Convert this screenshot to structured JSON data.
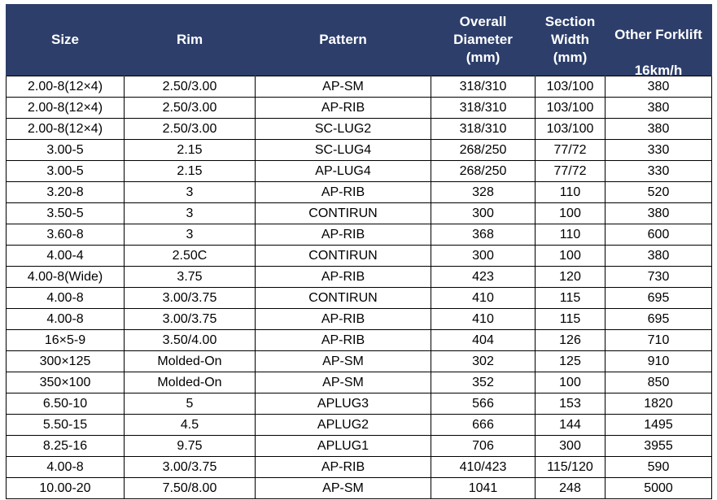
{
  "table": {
    "headers": {
      "size": "Size",
      "rim": "Rim",
      "pattern": "Pattern",
      "diameter": [
        "Overall",
        "Diameter",
        "(mm)"
      ],
      "width": [
        "Section",
        "Width",
        "(mm)"
      ],
      "forklift": [
        "Other Forklift",
        "16km/h"
      ]
    },
    "rows": [
      [
        "2.00-8(12×4)",
        "2.50/3.00",
        "AP-SM",
        "318/310",
        "103/100",
        "380"
      ],
      [
        "2.00-8(12×4)",
        "2.50/3.00",
        "AP-RIB",
        "318/310",
        "103/100",
        "380"
      ],
      [
        "2.00-8(12×4)",
        "2.50/3.00",
        "SC-LUG2",
        "318/310",
        "103/100",
        "380"
      ],
      [
        "3.00-5",
        "2.15",
        "SC-LUG4",
        "268/250",
        "77/72",
        "330"
      ],
      [
        "3.00-5",
        "2.15",
        "AP-LUG4",
        "268/250",
        "77/72",
        "330"
      ],
      [
        "3.20-8",
        "3",
        "AP-RIB",
        "328",
        "110",
        "520"
      ],
      [
        "3.50-5",
        "3",
        "CONTIRUN",
        "300",
        "100",
        "380"
      ],
      [
        "3.60-8",
        "3",
        "AP-RIB",
        "368",
        "110",
        "600"
      ],
      [
        "4.00-4",
        "2.50C",
        "CONTIRUN",
        "300",
        "100",
        "380"
      ],
      [
        "4.00-8(Wide)",
        "3.75",
        "AP-RIB",
        "423",
        "120",
        "730"
      ],
      [
        "4.00-8",
        "3.00/3.75",
        "CONTIRUN",
        "410",
        "115",
        "695"
      ],
      [
        "4.00-8",
        "3.00/3.75",
        "AP-RIB",
        "410",
        "115",
        "695"
      ],
      [
        "16×5-9",
        "3.50/4.00",
        "AP-RIB",
        "404",
        "126",
        "710"
      ],
      [
        "300×125",
        "Molded-On",
        "AP-SM",
        "302",
        "125",
        "910"
      ],
      [
        "350×100",
        "Molded-On",
        "AP-SM",
        "352",
        "100",
        "850"
      ],
      [
        "6.50-10",
        "5",
        "APLUG3",
        "566",
        "153",
        "1820"
      ],
      [
        "5.50-15",
        "4.5",
        "APLUG2",
        "666",
        "144",
        "1495"
      ],
      [
        "8.25-16",
        "9.75",
        "APLUG1",
        "706",
        "300",
        "3955"
      ],
      [
        "4.00-8",
        "3.00/3.75",
        "AP-RIB",
        "410/423",
        "115/120",
        "590"
      ],
      [
        "10.00-20",
        "7.50/8.00",
        "AP-SM",
        "1041",
        "248",
        "5000"
      ]
    ]
  },
  "colors": {
    "header_bg": "#2d3e6a",
    "header_text": "#ffffff",
    "border": "#000000"
  }
}
